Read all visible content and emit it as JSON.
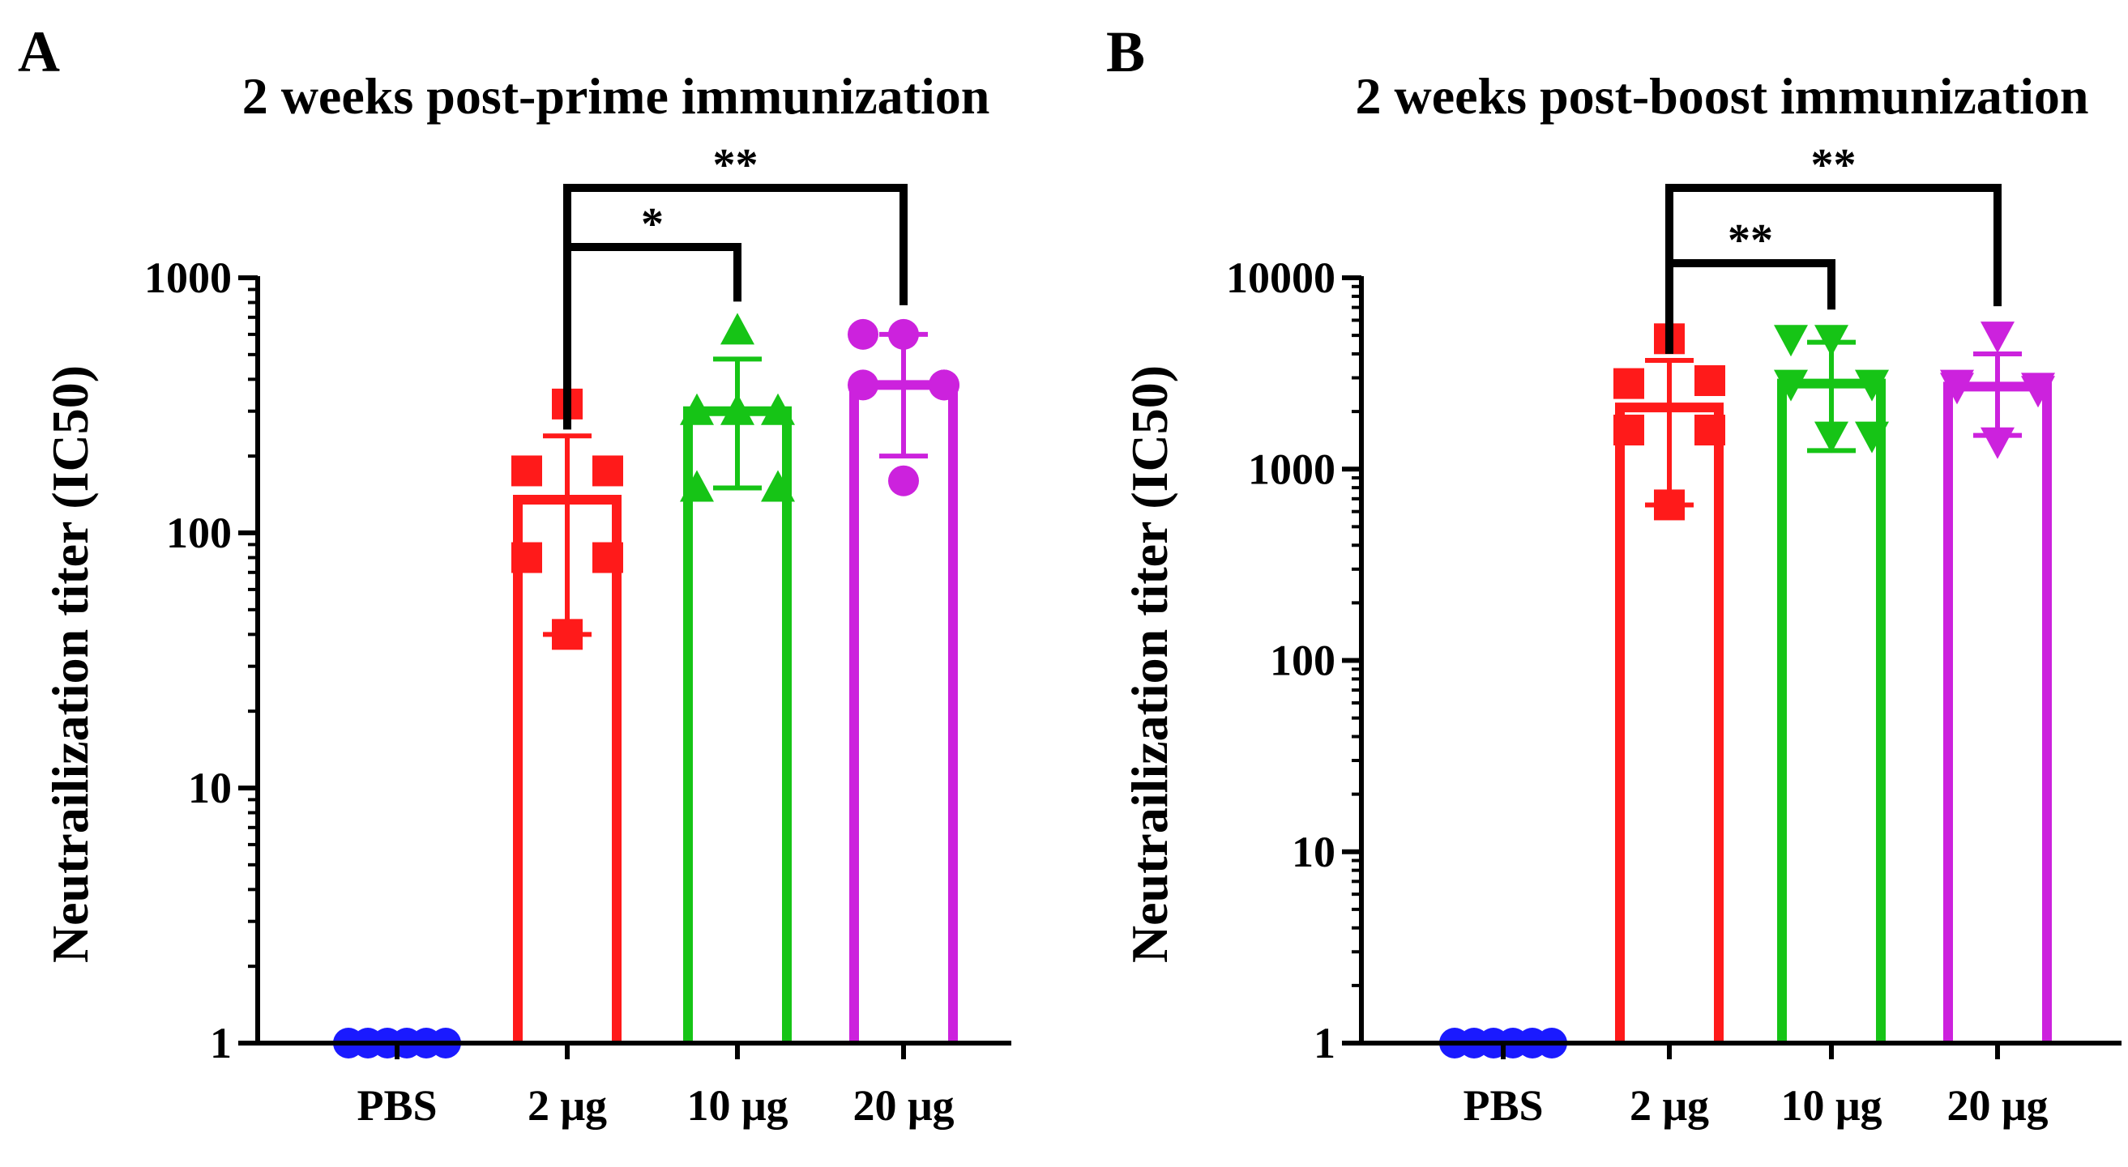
{
  "chart_data": [
    {
      "panel": "A",
      "type": "bar",
      "title": "2 weeks post-prime immunization",
      "ylabel": "Neutrailization titer (IC50)",
      "xlabel": "",
      "yscale": "log",
      "ylim": [
        1,
        1000
      ],
      "yticks": [
        1,
        10,
        100,
        1000
      ],
      "ytick_labels": [
        "1",
        "10",
        "100",
        "1000"
      ],
      "categories": [
        "PBS",
        "2 μg",
        "10 μg",
        "20 μg"
      ],
      "colors": [
        "#1a1aff",
        "#ff1a1a",
        "#16c416",
        "#cc22dd"
      ],
      "markers": [
        "circle",
        "square",
        "triangle-up",
        "circle"
      ],
      "values": [
        1,
        135,
        300,
        380
      ],
      "error": [
        [
          1,
          1
        ],
        [
          40,
          240
        ],
        [
          150,
          480
        ],
        [
          200,
          600
        ]
      ],
      "points": [
        [
          1,
          1,
          1,
          1,
          1,
          1
        ],
        [
          320,
          175,
          175,
          80,
          80,
          40
        ],
        [
          620,
          300,
          300,
          150,
          150,
          300
        ],
        [
          600,
          600,
          380,
          380,
          380,
          160
        ]
      ],
      "significance": [
        {
          "from": "2 μg",
          "to": "10 μg",
          "label": "*"
        },
        {
          "from": "2 μg",
          "to": "20 μg",
          "label": "**"
        }
      ]
    },
    {
      "panel": "B",
      "type": "bar",
      "title": "2 weeks post-boost immunization",
      "ylabel": "Neutrailization titer (IC50)",
      "xlabel": "",
      "yscale": "log",
      "ylim": [
        1,
        10000
      ],
      "yticks": [
        1,
        10,
        100,
        1000,
        10000
      ],
      "ytick_labels": [
        "1",
        "10",
        "100",
        "1000",
        "10000"
      ],
      "categories": [
        "PBS",
        "2 μg",
        "10 μg",
        "20 μg"
      ],
      "colors": [
        "#1a1aff",
        "#ff1a1a",
        "#16c416",
        "#cc22dd"
      ],
      "markers": [
        "circle",
        "square",
        "triangle-down",
        "triangle-down"
      ],
      "values": [
        1,
        2100,
        2800,
        2700
      ],
      "error": [
        [
          1,
          1
        ],
        [
          650,
          3700
        ],
        [
          1250,
          4600
        ],
        [
          1500,
          4000
        ]
      ],
      "points": [
        [
          1,
          1,
          1,
          1,
          1,
          1
        ],
        [
          4800,
          2800,
          2900,
          1600,
          1600,
          650
        ],
        [
          4800,
          4800,
          2800,
          2800,
          1500,
          1500
        ],
        [
          5000,
          2800,
          2700,
          2700,
          2600,
          1400
        ]
      ],
      "significance": [
        {
          "from": "2 μg",
          "to": "10 μg",
          "label": "**"
        },
        {
          "from": "2 μg",
          "to": "20 μg",
          "label": "**"
        }
      ]
    }
  ]
}
